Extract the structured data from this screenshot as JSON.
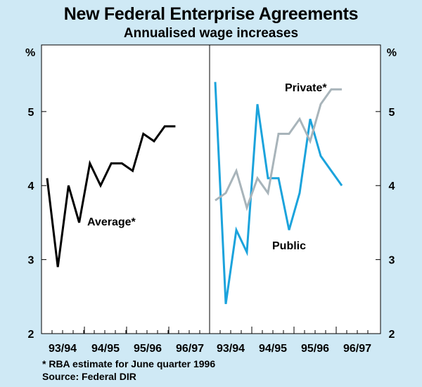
{
  "chart_data": {
    "type": "line",
    "title": "New Federal Enterprise Agreements",
    "subtitle": "Annualised wage increases",
    "ylabel_left": "%",
    "ylabel_right": "%",
    "ylim": [
      2,
      5.9
    ],
    "yticks": [
      2,
      3,
      4,
      5
    ],
    "yticklabels": [
      "2",
      "3",
      "4",
      "5"
    ],
    "grid": false,
    "panels": [
      {
        "name": "left",
        "categories": [
          "93/94",
          "94/95",
          "95/96",
          "96/97"
        ],
        "series": [
          {
            "name": "Average*",
            "color": "#000000",
            "values": [
              4.1,
              2.9,
              4.0,
              3.5,
              4.3,
              4.0,
              4.3,
              4.3,
              4.2,
              4.7,
              4.6,
              4.8,
              4.8
            ]
          }
        ]
      },
      {
        "name": "right",
        "categories": [
          "93/94",
          "94/95",
          "95/96",
          "96/97"
        ],
        "series": [
          {
            "name": "Public",
            "color": "#1ba3dc",
            "values": [
              5.4,
              2.4,
              3.4,
              3.1,
              5.1,
              4.1,
              4.1,
              3.4,
              3.9,
              4.9,
              4.4,
              4.2,
              4.0
            ]
          },
          {
            "name": "Private*",
            "color": "#a8b4ba",
            "values": [
              3.8,
              3.9,
              4.2,
              3.7,
              4.1,
              3.9,
              4.7,
              4.7,
              4.9,
              4.6,
              5.1,
              5.3,
              5.3
            ]
          }
        ]
      }
    ],
    "annotations": [
      "Average*",
      "Public",
      "Private*"
    ]
  },
  "footnotes": {
    "estimate": "*  RBA estimate for June quarter 1996",
    "source": "Source: Federal DIR"
  }
}
